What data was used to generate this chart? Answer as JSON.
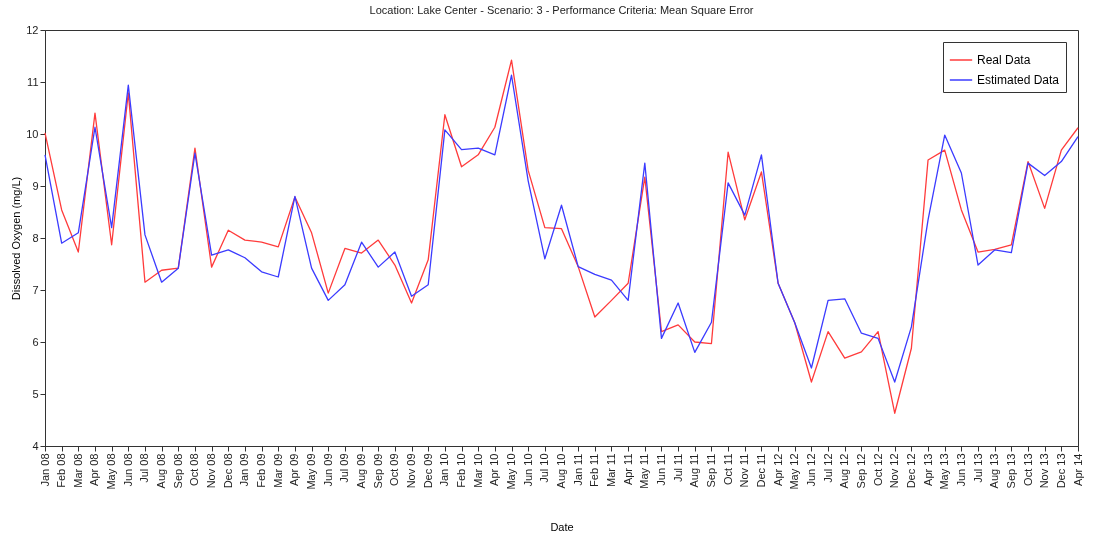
{
  "chart_data": {
    "type": "line",
    "title": "Location: Lake Center - Scenario: 3 - Performance Criteria: Mean Square Error",
    "xlabel": "Date",
    "ylabel": "Dissolved Oxygen (mg/L)",
    "categories": [
      "Jan 08",
      "Feb 08",
      "Mar 08",
      "Apr 08",
      "May 08",
      "Jun 08",
      "Jul 08",
      "Aug 08",
      "Sep 08",
      "Oct 08",
      "Nov 08",
      "Dec 08",
      "Jan 09",
      "Feb 09",
      "Mar 09",
      "Apr 09",
      "May 09",
      "Jun 09",
      "Jul 09",
      "Aug 09",
      "Sep 09",
      "Oct 09",
      "Nov 09",
      "Dec 09",
      "Jan 10",
      "Feb 10",
      "Mar 10",
      "Apr 10",
      "May 10",
      "Jun 10",
      "Jul 10",
      "Aug 10",
      "Jan 11",
      "Feb 11",
      "Mar 11",
      "Apr 11",
      "May 11",
      "Jun 11",
      "Jul 11",
      "Aug 11",
      "Sep 11",
      "Oct 11",
      "Nov 11",
      "Dec 11",
      "Apr 12",
      "May 12",
      "Jun 12",
      "Jul 12",
      "Aug 12",
      "Sep 12",
      "Oct 12",
      "Nov 12",
      "Dec 12",
      "Apr 13",
      "May 13",
      "Jun 13",
      "Jul 13",
      "Aug 13",
      "Sep 13",
      "Oct 13",
      "Nov 13",
      "Dec 13",
      "Apr 14"
    ],
    "series": [
      {
        "name": "Real Data",
        "color": "#ff3b3b",
        "values": [
          10.02,
          8.54,
          7.73,
          10.4,
          7.87,
          10.79,
          7.15,
          7.38,
          7.42,
          9.73,
          7.44,
          8.15,
          7.96,
          7.92,
          7.83,
          8.79,
          8.1,
          6.94,
          7.8,
          7.71,
          7.96,
          7.48,
          6.75,
          7.58,
          10.37,
          9.37,
          9.6,
          10.13,
          11.42,
          9.3,
          8.2,
          8.18,
          7.45,
          6.48,
          6.8,
          7.13,
          9.17,
          6.2,
          6.33,
          6.0,
          5.97,
          9.65,
          8.35,
          9.27,
          7.13,
          6.37,
          5.23,
          6.2,
          5.69,
          5.81,
          6.2,
          4.63,
          5.88,
          9.5,
          9.69,
          8.54,
          7.73,
          7.78,
          7.87,
          9.47,
          8.57,
          9.69,
          10.12
        ]
      },
      {
        "name": "Estimated Data",
        "color": "#3b3bff",
        "values": [
          9.6,
          7.9,
          8.1,
          10.13,
          8.2,
          10.94,
          8.06,
          7.15,
          7.42,
          9.63,
          7.67,
          7.77,
          7.62,
          7.35,
          7.25,
          8.8,
          7.42,
          6.8,
          7.1,
          7.92,
          7.44,
          7.73,
          6.88,
          7.1,
          10.08,
          9.7,
          9.73,
          9.6,
          11.13,
          9.1,
          7.6,
          8.63,
          7.45,
          7.3,
          7.19,
          6.8,
          9.44,
          6.07,
          6.75,
          5.8,
          6.38,
          9.06,
          8.44,
          9.6,
          7.13,
          6.37,
          5.5,
          6.8,
          6.83,
          6.17,
          6.07,
          5.23,
          6.29,
          8.35,
          9.98,
          9.25,
          7.48,
          7.77,
          7.72,
          9.44,
          9.2,
          9.47,
          9.95
        ]
      }
    ],
    "ylim": [
      4,
      12
    ],
    "yticks": [
      4,
      5,
      6,
      7,
      8,
      9,
      10,
      11,
      12
    ],
    "grid": false,
    "legend": "top right",
    "line_style": "solid"
  }
}
